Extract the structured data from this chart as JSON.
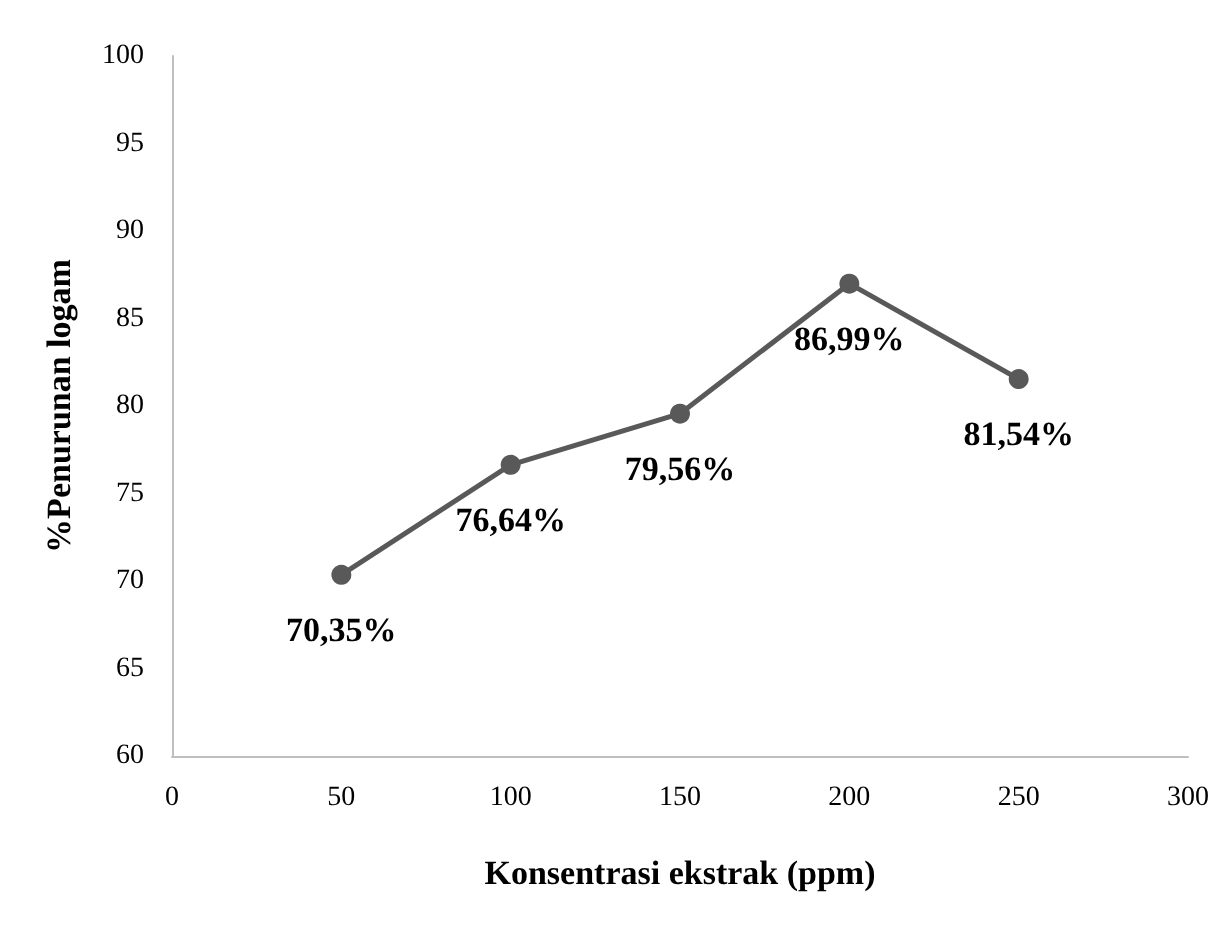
{
  "chart_data": {
    "type": "line",
    "xlabel": "Konsentrasi ekstrak (ppm)",
    "ylabel": "%Penurunan logam",
    "x": [
      50,
      100,
      150,
      200,
      250
    ],
    "series": [
      {
        "color": "#595959",
        "values": [
          70.35,
          76.64,
          79.56,
          86.99,
          81.54
        ],
        "value_labels": [
          "70,35%",
          "76,64%",
          "79,56%",
          "86,99%",
          "81,54%"
        ]
      }
    ],
    "xlim": [
      0,
      300
    ],
    "xticks": [
      0,
      50,
      100,
      150,
      200,
      250,
      300
    ],
    "ylim": [
      60,
      100
    ],
    "yticks": [
      60,
      65,
      70,
      75,
      80,
      85,
      90,
      95,
      100
    ],
    "grid": false,
    "marker": "circle",
    "line_style": "solid"
  }
}
